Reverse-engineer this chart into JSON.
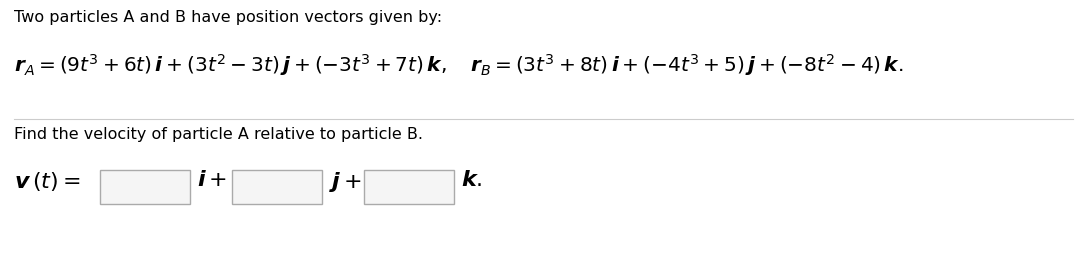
{
  "bg_color": "#ffffff",
  "text_color": "#000000",
  "line_color": "#cccccc",
  "box_edge_color": "#aaaaaa",
  "box_face_color": "#f5f5f5",
  "fontsize_title": 11.5,
  "fontsize_eq": 14.5,
  "fontsize_find": 11.5,
  "fontsize_vt": 16,
  "title": "Two particles A and B have position vectors given by:",
  "find": "Find the velocity of particle A relative to particle B.",
  "rA_full": "$\\boldsymbol{r}_A = (9t^3 + 6t)\\,\\boldsymbol{i} + (3t^2 - 3t)\\,\\boldsymbol{j} + (-3t^3 + 7t)\\,\\boldsymbol{k},\\quad \\boldsymbol{r}_B = (3t^3 + 8t)\\,\\boldsymbol{i} + (-4t^3 + 5)\\,\\boldsymbol{j} + (-8t^2 - 4)\\,\\boldsymbol{k}.$",
  "vt": "$\\boldsymbol{v}\\,(t) =$",
  "i_label": "$\\boldsymbol{i}+$",
  "j_label": "$\\boldsymbol{j}+$",
  "k_label": "$\\boldsymbol{k}.$"
}
